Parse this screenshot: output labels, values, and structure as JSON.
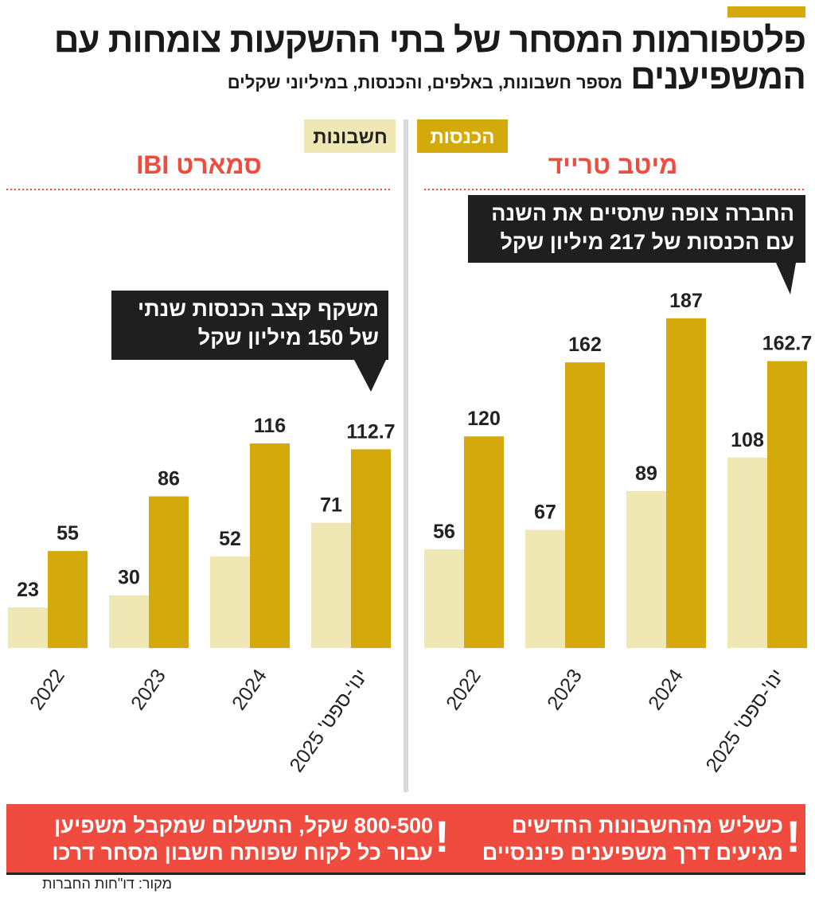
{
  "header": {
    "title": "פלטפורמות המסחר של בתי ההשקעות צומחות עם המשפיענים",
    "subtitle": "מספר חשבונות, באלפים, והכנסות, במיליוני שקלים"
  },
  "legend": {
    "accounts": "חשבונות",
    "revenue": "הכנסות"
  },
  "colors": {
    "accounts": "#efe7b4",
    "revenue": "#d3a90b",
    "title_red": "#ef4c3f",
    "banner": "#ef4c3f",
    "callout": "#1f1f1f"
  },
  "chart_data": [
    {
      "type": "bar",
      "title": "IBI סמארט",
      "categories": [
        "2022",
        "2023",
        "2024",
        "ינו'-ספט' 2025"
      ],
      "series": [
        {
          "name": "חשבונות",
          "values": [
            23,
            30,
            52,
            71
          ]
        },
        {
          "name": "הכנסות",
          "values": [
            55,
            86,
            116,
            112.7
          ]
        }
      ],
      "value_labels": {
        "accounts": [
          "23",
          "30",
          "52",
          "71"
        ],
        "revenue": [
          "55",
          "86",
          "116",
          "112.7"
        ]
      },
      "callout": [
        "משקף קצב הכנסות שנתי",
        "של 150 מיליון שקל"
      ]
    },
    {
      "type": "bar",
      "title": "מיטב טרייד",
      "categories": [
        "2022",
        "2023",
        "2024",
        "ינו'-ספט' 2025"
      ],
      "series": [
        {
          "name": "חשבונות",
          "values": [
            56,
            67,
            89,
            108
          ]
        },
        {
          "name": "הכנסות",
          "values": [
            120,
            162,
            187,
            162.7
          ]
        }
      ],
      "value_labels": {
        "accounts": [
          "56",
          "67",
          "89",
          "108"
        ],
        "revenue": [
          "120",
          "162",
          "187",
          "162.7"
        ]
      },
      "callout": [
        "החברה צופה שתסיים את השנה",
        "עם הכנסות של 217 מיליון שקל"
      ]
    }
  ],
  "banner": {
    "right": [
      "כשליש מהחשבונות החדשים",
      "מגיעים דרך משפיענים פיננסיים"
    ],
    "left": [
      "800-500 שקל, התשלום שמקבל משפיען",
      "עבור כל לקוח שפותח חשבון מסחר דרכו"
    ],
    "mark": "!"
  },
  "source": "מקור: דו\"חות החברות"
}
